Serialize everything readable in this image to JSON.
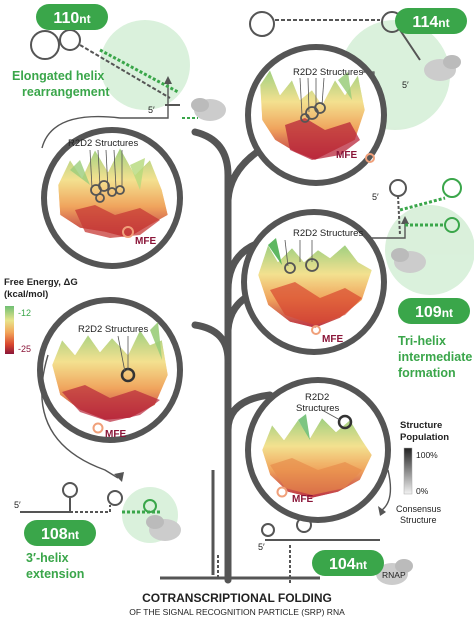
{
  "badges": {
    "b110": {
      "num": "110",
      "unit": "nt"
    },
    "b114": {
      "num": "114",
      "unit": "nt"
    },
    "b109": {
      "num": "109",
      "unit": "nt"
    },
    "b108": {
      "num": "108",
      "unit": "nt"
    },
    "b104": {
      "num": "104",
      "unit": "nt"
    }
  },
  "annotations": {
    "elongated_1": "Elongated helix",
    "elongated_2": "rearrangement",
    "trihelix_1": "Tri-helix",
    "trihelix_2": "intermediate",
    "trihelix_3": "formation",
    "extension_1": "3′-helix",
    "extension_2": "extension",
    "five_prime": "5′"
  },
  "labels": {
    "r2d2": "R2D2 Structures",
    "r2d2_line1": "R2D2",
    "r2d2_line2": "Structures",
    "mfe": "MFE",
    "consensus_1": "Consensus",
    "consensus_2": "Structure",
    "rnap": "RNAP"
  },
  "legend_energy": {
    "title_1": "Free Energy, ΔG",
    "title_2": "(kcal/mol)",
    "max_label": "-12",
    "min_label": "-25",
    "colors": [
      "#6fbf73",
      "#e8e58c",
      "#f2a65a",
      "#d9472f",
      "#8a1538"
    ]
  },
  "legend_population": {
    "title_1": "Structure",
    "title_2": "Population",
    "max_label": "100%",
    "min_label": "0%"
  },
  "footer": {
    "title": "COTRANSCRIPTIONAL FOLDING",
    "subtitle": "OF THE SIGNAL RECOGNITION PARTICLE (SRP) RNA"
  },
  "colors": {
    "green": "#3aa64a",
    "trunk": "#555555",
    "mfe": "#8a1538"
  }
}
